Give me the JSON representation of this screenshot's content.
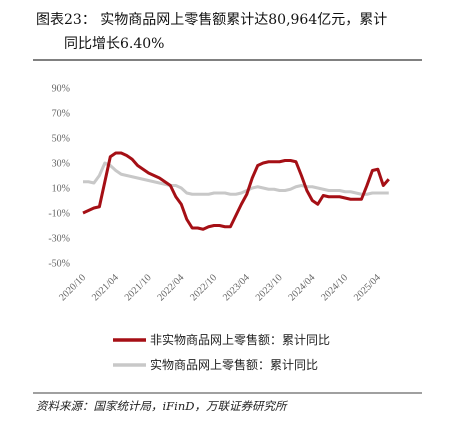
{
  "chart_data": {
    "type": "line",
    "title_line1": "图表23： 实物商品网上零售额累计达80,964亿元，累计",
    "title_line2": "同比增长6.40%",
    "source": "资料来源：国家统计局，iFinD，万联证券研究所",
    "categories": [
      "2020/10",
      null,
      null,
      null,
      null,
      null,
      "2021/04",
      null,
      null,
      null,
      null,
      null,
      "2021/10",
      null,
      null,
      null,
      null,
      null,
      "2022/04",
      null,
      null,
      null,
      null,
      null,
      "2022/10",
      null,
      null,
      null,
      null,
      null,
      "2023/04",
      null,
      null,
      null,
      null,
      null,
      "2023/10",
      null,
      null,
      null,
      null,
      null,
      "2024/04",
      null,
      null,
      null,
      null,
      null,
      "2024/10",
      null,
      null,
      null,
      null,
      null,
      "2025/04",
      null,
      null
    ],
    "series": [
      {
        "name": "非实物商品网上零售额：累计同比",
        "color": "#a50f15",
        "values": [
          -10,
          -8,
          -6,
          -5,
          15,
          35,
          38,
          38,
          36,
          33,
          28,
          25,
          22,
          20,
          18,
          15,
          12,
          3,
          -3,
          -15,
          -22,
          -22,
          -23,
          -21,
          -20,
          -20,
          -21,
          -21,
          -12,
          -3,
          5,
          18,
          28,
          30,
          31,
          31,
          31,
          32,
          32,
          31,
          20,
          8,
          0,
          -3,
          4,
          3,
          3,
          3,
          2,
          1,
          1,
          1,
          12,
          24,
          25,
          12,
          17
        ]
      },
      {
        "name": "实物商品网上零售额：累计同比",
        "color": "#c8c8c8",
        "values": [
          15,
          15,
          14,
          20,
          30,
          28,
          24,
          21,
          20,
          19,
          18,
          17,
          16,
          15,
          14,
          13,
          12,
          12,
          10,
          6,
          5,
          5,
          5,
          5,
          6,
          6,
          6,
          5,
          5,
          6,
          8,
          10,
          11,
          10,
          9,
          9,
          8,
          8,
          9,
          11,
          12,
          11,
          11,
          10,
          9,
          8,
          8,
          8,
          7,
          7,
          6,
          5,
          5,
          6,
          6,
          6,
          6
        ]
      }
    ],
    "ylim": [
      -50,
      90
    ],
    "yticks": [
      {
        "value": -50,
        "label": "-50%"
      },
      {
        "value": -30,
        "label": "-30%"
      },
      {
        "value": -10,
        "label": "-10%"
      },
      {
        "value": 10,
        "label": "10%"
      },
      {
        "value": 30,
        "label": "30%"
      },
      {
        "value": 50,
        "label": "50%"
      },
      {
        "value": 70,
        "label": "70%"
      },
      {
        "value": 90,
        "label": "90%"
      }
    ]
  }
}
